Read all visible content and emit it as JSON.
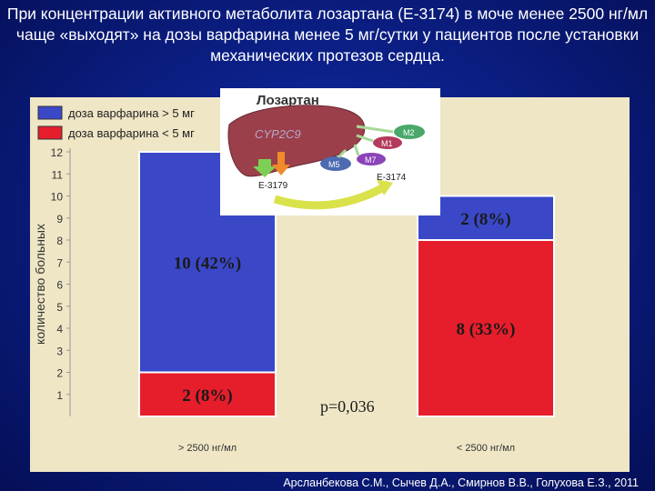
{
  "title": "При концентрации активного метаболита лозартана (Е-3174) в моче менее 2500 нг/мл чаще «выходят» на дозы варфарина менее 5 мг/сутки у пациентов после установки механических протезов сердца.",
  "citation": "Арсланбекова С.М., Сычев Д.А., Смирнов В.В., Голухова Е.З., 2011",
  "colors": {
    "high_dose": "#3a48c8",
    "low_dose": "#e61e2b",
    "panel": "#efe6c6"
  },
  "inset": {
    "title": "Лозартан",
    "enzyme": "CYP2C9",
    "metabolites": [
      "M2",
      "M1",
      "M7",
      "M5"
    ],
    "product_left": "E-3179",
    "product_right": "E-3174"
  },
  "chart_data": {
    "type": "bar",
    "stacked": true,
    "categories": [
      "> 2500 нг/мл",
      "< 2500 нг/мл"
    ],
    "series": [
      {
        "name": "доза варфарина < 5 мг",
        "color": "#e61e2b",
        "values": [
          2,
          8
        ],
        "labels": [
          "2 (8%)",
          "8 (33%)"
        ]
      },
      {
        "name": "доза варфарина > 5 мг",
        "color": "#3a48c8",
        "values": [
          10,
          2
        ],
        "labels": [
          "10 (42%)",
          "2 (8%)"
        ]
      }
    ],
    "ylabel": "количество больных",
    "ylim": [
      0,
      12
    ],
    "yticks": [
      "1",
      "2",
      "3",
      "4",
      "5",
      "6",
      "7",
      "8",
      "9",
      "10",
      "11",
      "12"
    ],
    "legend": [
      "доза варфарина > 5 мг",
      "доза варфарина < 5 мг"
    ],
    "legend_position": "top-left",
    "annotation": "p=0,036"
  }
}
